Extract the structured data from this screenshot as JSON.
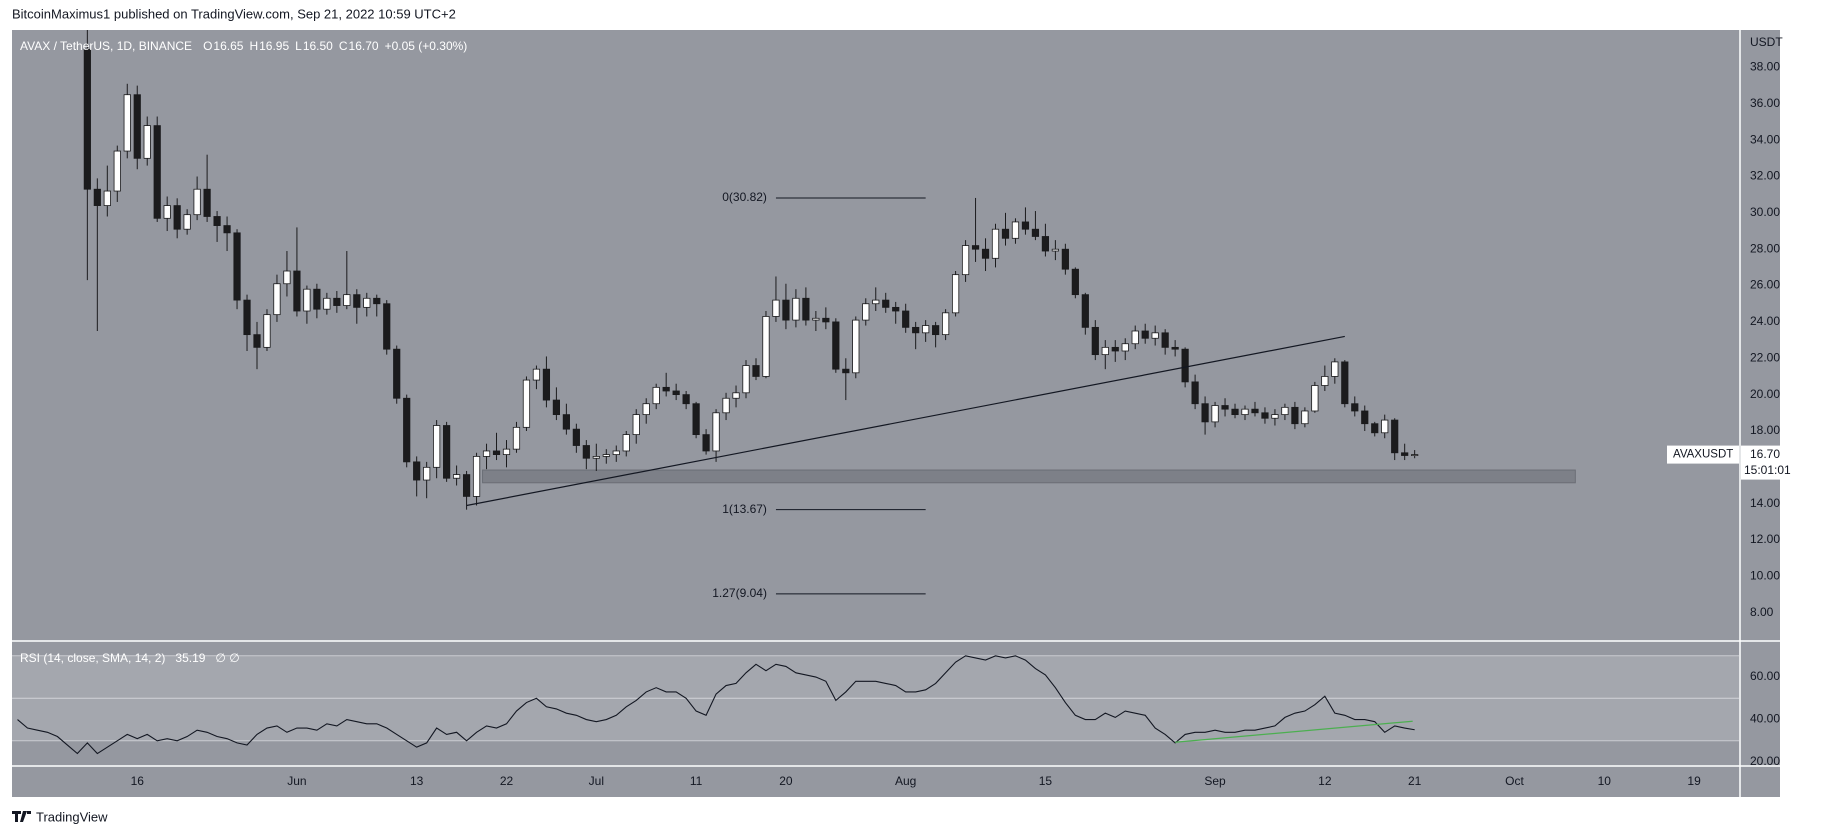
{
  "chart_data": {
    "type": "candlestick",
    "header": "BitcoinMaximus1 published on TradingView.com, Sep 21, 2022 10:59 UTC+2",
    "symbol": "AVAX / TetherUS, 1D, BINANCE",
    "legend": [
      {
        "label": "O",
        "value": "16.65"
      },
      {
        "label": "H",
        "value": "16.95"
      },
      {
        "label": "L",
        "value": "16.50"
      },
      {
        "label": "C",
        "value": "16.70"
      }
    ],
    "change": "+0.05 (+0.30%)",
    "y_unit": "USDT",
    "background": "#9598a0",
    "x": [
      131,
      132,
      133,
      134,
      135,
      136,
      137,
      138,
      139,
      140,
      141,
      142,
      143,
      144,
      145,
      146,
      147,
      148,
      149,
      150,
      151,
      152,
      153,
      154,
      155,
      156,
      157,
      158,
      159,
      160,
      161,
      162,
      163,
      164,
      165,
      166,
      167,
      168,
      169,
      170,
      171,
      172,
      173,
      174,
      175,
      176,
      177,
      178,
      179,
      180,
      181,
      182,
      183,
      184,
      185,
      186,
      187,
      188,
      189,
      190,
      191,
      192,
      193,
      194,
      195,
      196,
      197,
      198,
      199,
      200,
      201,
      202,
      203,
      204,
      205,
      206,
      207,
      208,
      209,
      210,
      211,
      212,
      213,
      214,
      215,
      216,
      217,
      218,
      219,
      220,
      221,
      222,
      223,
      224,
      225,
      226,
      227,
      228,
      229,
      230,
      231,
      232,
      233,
      234,
      235,
      236,
      237,
      238,
      239,
      240,
      241,
      242,
      243,
      244,
      245,
      246,
      247,
      248,
      249,
      250,
      251,
      252,
      253,
      254,
      255,
      256,
      257,
      258,
      259,
      260,
      261,
      262,
      263,
      264
    ],
    "series": [
      {
        "name": "AVAXUSDT",
        "up_color": "#ffffff",
        "down_color": "#1b1b1d",
        "open": [
          39.0,
          31.3,
          30.4,
          31.2,
          33.4,
          36.5,
          33.0,
          34.8,
          29.7,
          30.4,
          29.1,
          29.9,
          31.3,
          29.8,
          29.3,
          28.9,
          25.2,
          23.3,
          22.6,
          24.4,
          26.1,
          26.8,
          24.6,
          25.8,
          24.7,
          25.3,
          24.9,
          25.5,
          24.8,
          25.3,
          25.0,
          22.5,
          19.8,
          16.3,
          15.3,
          16.0,
          18.3,
          15.4,
          15.6,
          14.4,
          16.6,
          16.9,
          16.7,
          17.0,
          18.2,
          20.8,
          21.4,
          19.7,
          18.9,
          18.1,
          17.2,
          16.5,
          16.6,
          16.7,
          16.9,
          17.8,
          18.9,
          19.5,
          20.4,
          20.2,
          20.0,
          19.5,
          17.8,
          16.9,
          19.0,
          19.8,
          20.1,
          21.6,
          21.0,
          24.3,
          25.2,
          24.1,
          25.3,
          24.1,
          24.2,
          24.0,
          21.4,
          21.2,
          24.1,
          25.0,
          25.2,
          24.8,
          24.6,
          23.7,
          23.4,
          23.8,
          23.3,
          24.5,
          26.6,
          28.2,
          28.0,
          27.5,
          29.1,
          28.6,
          29.5,
          29.1,
          28.7,
          27.9,
          28.0,
          26.9,
          25.5,
          23.7,
          22.2,
          22.6,
          22.4,
          22.8,
          23.5,
          23.1,
          23.4,
          22.6,
          22.5,
          20.7,
          19.5,
          18.5,
          19.4,
          19.2,
          18.9,
          19.2,
          19.0,
          18.7,
          18.9,
          19.3,
          18.4,
          19.1,
          20.5,
          21.0,
          21.8,
          19.5,
          19.1,
          18.4,
          17.9,
          18.6,
          16.8,
          16.65
        ],
        "high": [
          40.1,
          31.9,
          32.6,
          33.7,
          37.1,
          37.0,
          35.3,
          35.3,
          30.9,
          30.8,
          30.2,
          32.0,
          33.2,
          30.1,
          29.8,
          29.1,
          25.5,
          24.0,
          24.7,
          26.6,
          27.9,
          29.2,
          26.0,
          26.1,
          25.6,
          25.7,
          27.9,
          25.8,
          25.6,
          25.5,
          25.2,
          22.7,
          20.0,
          16.6,
          16.3,
          18.6,
          18.5,
          16.1,
          15.8,
          16.8,
          17.3,
          17.9,
          17.5,
          18.5,
          21.0,
          21.6,
          22.1,
          20.4,
          19.5,
          18.4,
          17.5,
          17.3,
          17.0,
          17.2,
          18.0,
          19.2,
          19.8,
          20.6,
          21.2,
          20.6,
          20.2,
          19.6,
          18.1,
          19.2,
          20.1,
          20.5,
          21.9,
          22.0,
          24.6,
          26.5,
          26.1,
          25.8,
          25.9,
          24.6,
          24.8,
          24.2,
          22.0,
          24.3,
          25.3,
          25.9,
          25.6,
          25.1,
          25.0,
          24.0,
          24.1,
          24.0,
          24.7,
          26.8,
          28.5,
          30.82,
          28.6,
          29.4,
          30.0,
          29.7,
          30.3,
          30.1,
          29.4,
          28.5,
          28.3,
          27.0,
          25.6,
          24.1,
          23.0,
          23.0,
          23.1,
          23.8,
          23.9,
          23.8,
          23.6,
          23.0,
          22.6,
          21.1,
          19.9,
          19.6,
          19.8,
          19.5,
          19.4,
          19.6,
          19.3,
          19.2,
          19.5,
          19.6,
          19.3,
          20.7,
          21.6,
          22.0,
          21.9,
          19.9,
          19.4,
          18.5,
          18.9,
          18.7,
          17.3,
          16.95
        ],
        "low": [
          26.3,
          23.5,
          29.8,
          30.6,
          33.0,
          32.4,
          32.6,
          29.5,
          29.0,
          28.6,
          28.8,
          29.6,
          29.5,
          28.4,
          27.9,
          24.7,
          22.4,
          21.4,
          22.4,
          24.0,
          25.4,
          24.3,
          23.9,
          24.2,
          24.4,
          24.5,
          24.7,
          23.9,
          24.3,
          24.3,
          22.2,
          19.5,
          16.0,
          14.4,
          14.3,
          15.4,
          15.2,
          15.0,
          13.67,
          13.9,
          15.9,
          16.4,
          16.0,
          16.8,
          18.0,
          20.3,
          19.3,
          18.6,
          17.8,
          16.8,
          15.9,
          15.8,
          16.2,
          16.3,
          16.6,
          17.3,
          18.4,
          19.2,
          19.9,
          19.7,
          19.2,
          17.6,
          16.7,
          16.3,
          18.6,
          19.3,
          19.8,
          20.8,
          20.9,
          24.0,
          23.6,
          23.7,
          23.8,
          23.5,
          23.6,
          21.2,
          19.7,
          20.9,
          23.8,
          24.6,
          24.5,
          23.9,
          23.4,
          22.5,
          22.9,
          22.6,
          23.0,
          24.3,
          26.2,
          27.3,
          26.8,
          27.0,
          28.2,
          28.3,
          28.8,
          28.5,
          27.6,
          27.4,
          26.6,
          25.3,
          23.3,
          21.9,
          21.4,
          21.8,
          21.9,
          22.5,
          22.8,
          22.7,
          22.2,
          22.1,
          20.4,
          19.2,
          17.8,
          18.2,
          18.8,
          18.7,
          18.6,
          18.8,
          18.4,
          18.3,
          18.6,
          18.1,
          18.2,
          19.0,
          20.2,
          20.6,
          19.3,
          18.8,
          18.0,
          17.7,
          17.6,
          16.4,
          16.4,
          16.5
        ],
        "close": [
          31.3,
          30.4,
          31.2,
          33.4,
          36.5,
          33.0,
          34.8,
          29.7,
          30.4,
          29.1,
          29.9,
          31.3,
          29.8,
          29.3,
          28.9,
          25.2,
          23.3,
          22.6,
          24.4,
          26.1,
          26.8,
          24.6,
          25.8,
          24.7,
          25.3,
          24.9,
          25.5,
          24.8,
          25.3,
          25.0,
          22.5,
          19.8,
          16.3,
          15.3,
          16.0,
          18.3,
          15.4,
          15.6,
          14.4,
          16.6,
          16.9,
          16.7,
          17.0,
          18.2,
          20.8,
          21.4,
          19.7,
          18.9,
          18.1,
          17.2,
          16.5,
          16.6,
          16.7,
          16.9,
          17.8,
          18.9,
          19.5,
          20.4,
          20.2,
          20.0,
          19.5,
          17.8,
          16.9,
          19.0,
          19.8,
          20.1,
          21.6,
          21.0,
          24.3,
          25.2,
          24.1,
          25.3,
          24.1,
          24.2,
          24.0,
          21.4,
          21.2,
          24.1,
          25.0,
          25.2,
          24.8,
          24.6,
          23.7,
          23.4,
          23.8,
          23.3,
          24.5,
          26.6,
          28.2,
          28.0,
          27.5,
          29.1,
          28.6,
          29.5,
          29.1,
          28.7,
          27.9,
          28.0,
          26.9,
          25.5,
          23.7,
          22.2,
          22.6,
          22.4,
          22.8,
          23.5,
          23.1,
          23.4,
          22.6,
          22.5,
          20.7,
          19.5,
          18.5,
          19.4,
          19.2,
          18.9,
          19.2,
          19.0,
          18.7,
          18.9,
          19.3,
          18.4,
          19.1,
          20.5,
          21.0,
          21.8,
          19.5,
          19.1,
          18.4,
          17.9,
          18.6,
          16.8,
          16.65,
          16.7
        ]
      }
    ],
    "last_price": {
      "value": 16.7,
      "label": "16.70"
    },
    "countdown": "15:01:01",
    "xlim": [
      123.45,
      296.5
    ],
    "xticks": [
      {
        "value": 136,
        "label": "16"
      },
      {
        "value": 152,
        "label": "Jun"
      },
      {
        "value": 164,
        "label": "13"
      },
      {
        "value": 173,
        "label": "22"
      },
      {
        "value": 182,
        "label": "Jul"
      },
      {
        "value": 192,
        "label": "11"
      },
      {
        "value": 201,
        "label": "20"
      },
      {
        "value": 213,
        "label": "Aug"
      },
      {
        "value": 227,
        "label": "15"
      },
      {
        "value": 244,
        "label": "Sep"
      },
      {
        "value": 255,
        "label": "12"
      },
      {
        "value": 264,
        "label": "21"
      },
      {
        "value": 274,
        "label": "Oct"
      },
      {
        "value": 283,
        "label": "10"
      },
      {
        "value": 292,
        "label": "19"
      }
    ],
    "ylim": [
      6.5,
      40.06
    ],
    "yticks": [
      {
        "value": 8,
        "label": "8.00"
      },
      {
        "value": 10,
        "label": "10.00"
      },
      {
        "value": 12,
        "label": "12.00"
      },
      {
        "value": 14,
        "label": "14.00"
      },
      {
        "value": 16,
        "label": "16.00"
      },
      {
        "value": 18,
        "label": "18.00"
      },
      {
        "value": 20,
        "label": "20.00"
      },
      {
        "value": 22,
        "label": "22.00"
      },
      {
        "value": 24,
        "label": "24.00"
      },
      {
        "value": 26,
        "label": "26.00"
      },
      {
        "value": 28,
        "label": "28.00"
      },
      {
        "value": 30,
        "label": "30.00"
      },
      {
        "value": 32,
        "label": "32.00"
      },
      {
        "value": 34,
        "label": "34.00"
      },
      {
        "value": 36,
        "label": "36.00"
      },
      {
        "value": 38,
        "label": "38.00"
      }
    ],
    "fib": [
      {
        "label": "0(30.82)",
        "value": 30.82
      },
      {
        "label": "1(13.67)",
        "value": 13.67
      },
      {
        "label": "1.27(9.04)",
        "value": 9.04
      }
    ],
    "fib_x": [
      200,
      215
    ],
    "trendline": {
      "x": [
        169,
        257
      ],
      "y": [
        13.9,
        23.2
      ]
    },
    "zone": {
      "x": [
        170.6,
        280.1
      ],
      "y": [
        15.15,
        15.85
      ],
      "color": "#7d8088"
    },
    "rsi": {
      "title": "RSI (14, close, SMA, 14, 2)",
      "flags": "∅ ∅",
      "x": [
        124,
        125,
        126,
        127,
        128,
        129,
        130,
        131,
        132,
        133,
        134,
        135,
        136,
        137,
        138,
        139,
        140,
        141,
        142,
        143,
        144,
        145,
        146,
        147,
        148,
        149,
        150,
        151,
        152,
        153,
        154,
        155,
        156,
        157,
        158,
        159,
        160,
        161,
        162,
        163,
        164,
        165,
        166,
        167,
        168,
        169,
        170,
        171,
        172,
        173,
        174,
        175,
        176,
        177,
        178,
        179,
        180,
        181,
        182,
        183,
        184,
        185,
        186,
        187,
        188,
        189,
        190,
        191,
        192,
        193,
        194,
        195,
        196,
        197,
        198,
        199,
        200,
        201,
        202,
        203,
        204,
        205,
        206,
        207,
        208,
        209,
        210,
        211,
        212,
        213,
        214,
        215,
        216,
        217,
        218,
        219,
        220,
        221,
        222,
        223,
        224,
        225,
        226,
        227,
        228,
        229,
        230,
        231,
        232,
        233,
        234,
        235,
        236,
        237,
        238,
        239,
        240,
        241,
        242,
        243,
        244,
        245,
        246,
        247,
        248,
        249,
        250,
        251,
        252,
        253,
        254,
        255,
        256,
        257,
        258,
        259,
        260,
        261,
        262,
        263,
        264
      ],
      "values": [
        40,
        36,
        35,
        34,
        32,
        28,
        24,
        29,
        24,
        27,
        30,
        33,
        31,
        33,
        30,
        31,
        30,
        32,
        35,
        34,
        32,
        31,
        29,
        28,
        33,
        36,
        37,
        34,
        36,
        36,
        35,
        38,
        37,
        40,
        39,
        38,
        38,
        36,
        33,
        30,
        27,
        29,
        36,
        33,
        34,
        30,
        34,
        37,
        36,
        38,
        44,
        48,
        50,
        46,
        45,
        43,
        42,
        40,
        39,
        40,
        42,
        46,
        49,
        53,
        55,
        53,
        53,
        50,
        44,
        42,
        52,
        56,
        57,
        62,
        66,
        63,
        66,
        65,
        62,
        61,
        60,
        58,
        49,
        53,
        58,
        58,
        58,
        57,
        56,
        53,
        53,
        54,
        57,
        62,
        67,
        70,
        69,
        68,
        70,
        69,
        70,
        68,
        64,
        61,
        55,
        48,
        42,
        40,
        40,
        43,
        41,
        44,
        43,
        42,
        36,
        33,
        29,
        33,
        34,
        34,
        35,
        34,
        34,
        35,
        35,
        36,
        37,
        41,
        43,
        44,
        47,
        51,
        43,
        42,
        40,
        40,
        39,
        34,
        37,
        36,
        35.19
      ],
      "color": "#131722",
      "ylim": [
        18.6,
        76.5
      ],
      "yticks": [
        {
          "value": 20,
          "label": "20.00"
        },
        {
          "value": 40,
          "label": "40.00"
        },
        {
          "value": 60,
          "label": "60.00"
        }
      ],
      "band": [
        30,
        70
      ],
      "midline": 50,
      "trendline": {
        "x": [
          240,
          263.8
        ],
        "y": [
          29.3,
          39.2
        ],
        "color": "#4caf50"
      }
    },
    "footer": "TradingView"
  }
}
